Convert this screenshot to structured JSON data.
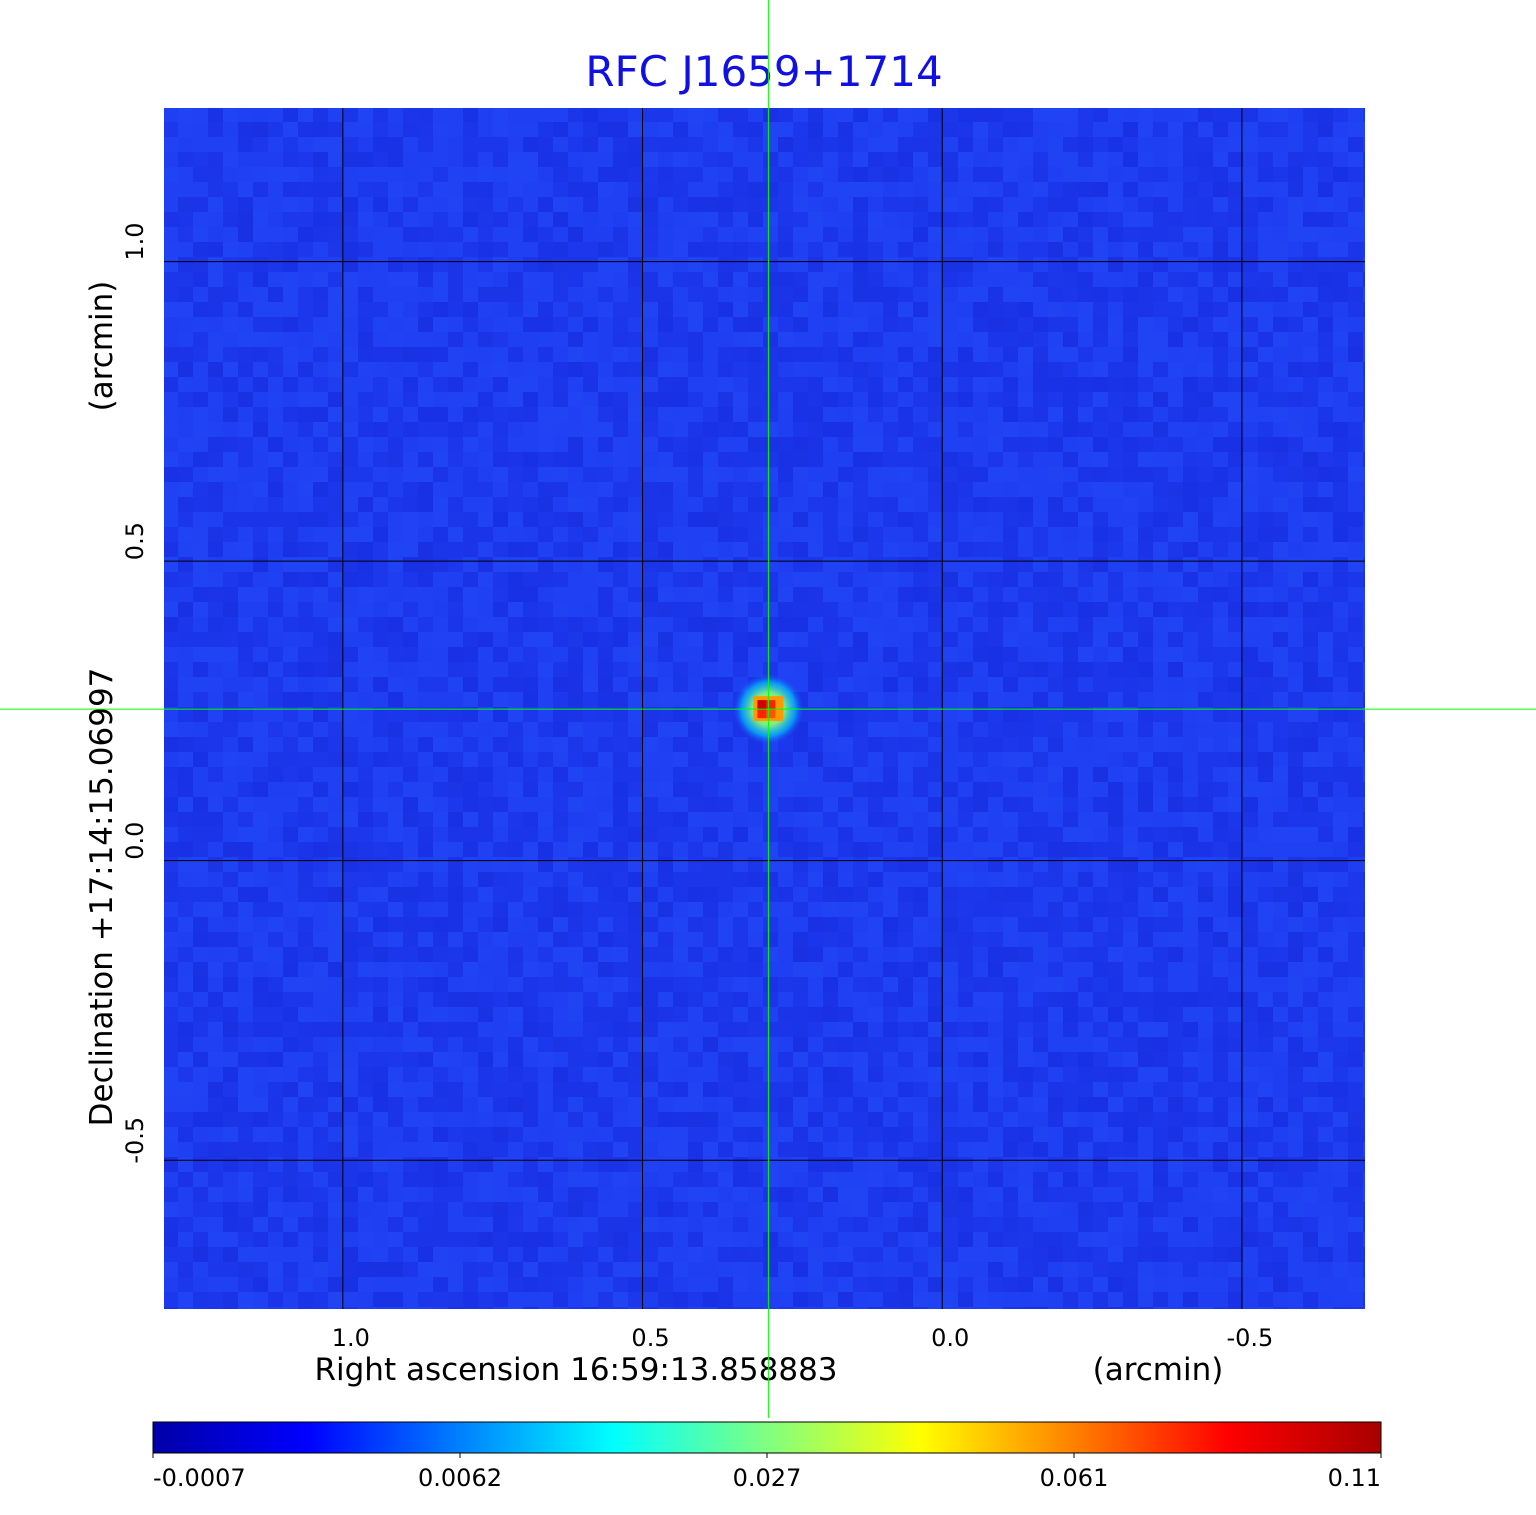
{
  "chart_data": {
    "type": "heatmap",
    "title": "RFC J1659+1714",
    "xlabel": "Right ascension  16:59:13.858883",
    "xunit": "(arcmin)",
    "ylabel": "Declination  +17:14:15.06997",
    "yunit": "(arcmin)",
    "x_ticks": [
      1.0,
      0.5,
      0.0,
      -0.5
    ],
    "x_tick_labels": [
      "1.0",
      "0.5",
      "0.0",
      "-0.5"
    ],
    "y_ticks": [
      1.0,
      0.5,
      0.0,
      -0.5
    ],
    "y_tick_labels": [
      "1.0",
      "0.5",
      "0.0",
      "-0.5"
    ],
    "xlim": [
      1.3,
      -0.707
    ],
    "ylim": [
      -0.75,
      1.258
    ],
    "grid": true,
    "source_peak": {
      "x": 0.29,
      "y": 0.253,
      "value": 0.11
    },
    "crosshair": {
      "x": 0.29,
      "y": 0.253
    },
    "colorbar": {
      "tick_labels": [
        "-0.0007",
        "0.0062",
        "0.027",
        "0.061",
        "0.11"
      ],
      "min": -0.0007,
      "max": 0.11,
      "colors": [
        "#0000a8",
        "#0000ff",
        "#0080ff",
        "#00ffff",
        "#80ff80",
        "#ffff00",
        "#ff8000",
        "#ff0000",
        "#a80000"
      ]
    },
    "colors": {
      "title": "#1010e0",
      "background_field": "#1f3cf2",
      "grid": "#000000",
      "crosshair": "#00ff00"
    }
  }
}
